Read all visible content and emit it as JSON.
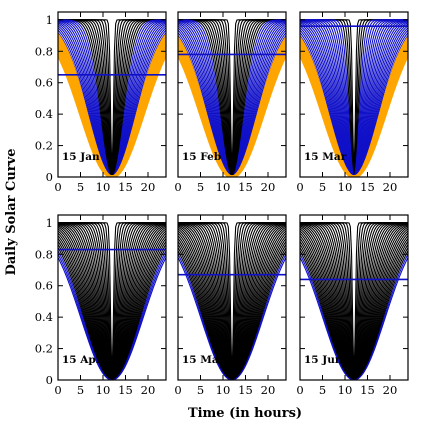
{
  "chart_data": {
    "type": "line",
    "xlabel": "Time (in hours)",
    "ylabel": "Daily Solar Curve",
    "xlim": [
      0,
      24
    ],
    "ylim": [
      0,
      1.05
    ],
    "xticks": [
      0,
      5,
      10,
      15,
      20
    ],
    "yticks": [
      0,
      0.2,
      0.4,
      0.6,
      0.8,
      1
    ],
    "ytick_labels": [
      "0",
      "0.2",
      "0.4",
      "0.6",
      "0.8",
      "1"
    ],
    "colors": {
      "black": "#000000",
      "blue": "#1010c8",
      "orange": "#ffa500"
    },
    "panels": [
      {
        "label": "15 Jan",
        "reference_line": 0.65,
        "band_edges": {
          "black": 0.0,
          "blue": 2.6,
          "orange": 5.4
        }
      },
      {
        "label": "15 Feb",
        "reference_line": 0.78,
        "band_edges": {
          "black": 0.0,
          "blue": 2.6,
          "orange": 5.8
        }
      },
      {
        "label": "15 Mar",
        "reference_line": 0.96,
        "band_edges": {
          "black": 0.0,
          "blue": 1.0,
          "orange": 5.6
        }
      },
      {
        "label": "15 Apr",
        "reference_line": 0.83,
        "band_edges": {
          "black": 0.0,
          "blue": 6.4,
          "orange": 6.9
        }
      },
      {
        "label": "15 May",
        "reference_line": 0.67,
        "band_edges": {
          "black": 0.0,
          "blue": 6.6,
          "orange": 6.9
        }
      },
      {
        "label": "15 Jun",
        "reference_line": 0.64,
        "band_edges": {
          "black": 0.0,
          "blue": 6.5,
          "orange": 6.9
        }
      }
    ]
  }
}
